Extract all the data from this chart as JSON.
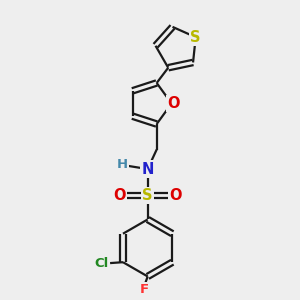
{
  "bg_color": "#eeeeee",
  "bond_color": "#1a1a1a",
  "S_color": "#b8b800",
  "O_color": "#dd0000",
  "N_color": "#2222cc",
  "Cl_color": "#228822",
  "F_color": "#ff3333",
  "H_color": "#4488aa",
  "line_width": 1.6,
  "font_size": 9.5,
  "figsize": [
    3.0,
    3.0
  ],
  "dpi": 100,
  "xlim": [
    0,
    10
  ],
  "ylim": [
    0,
    10
  ]
}
